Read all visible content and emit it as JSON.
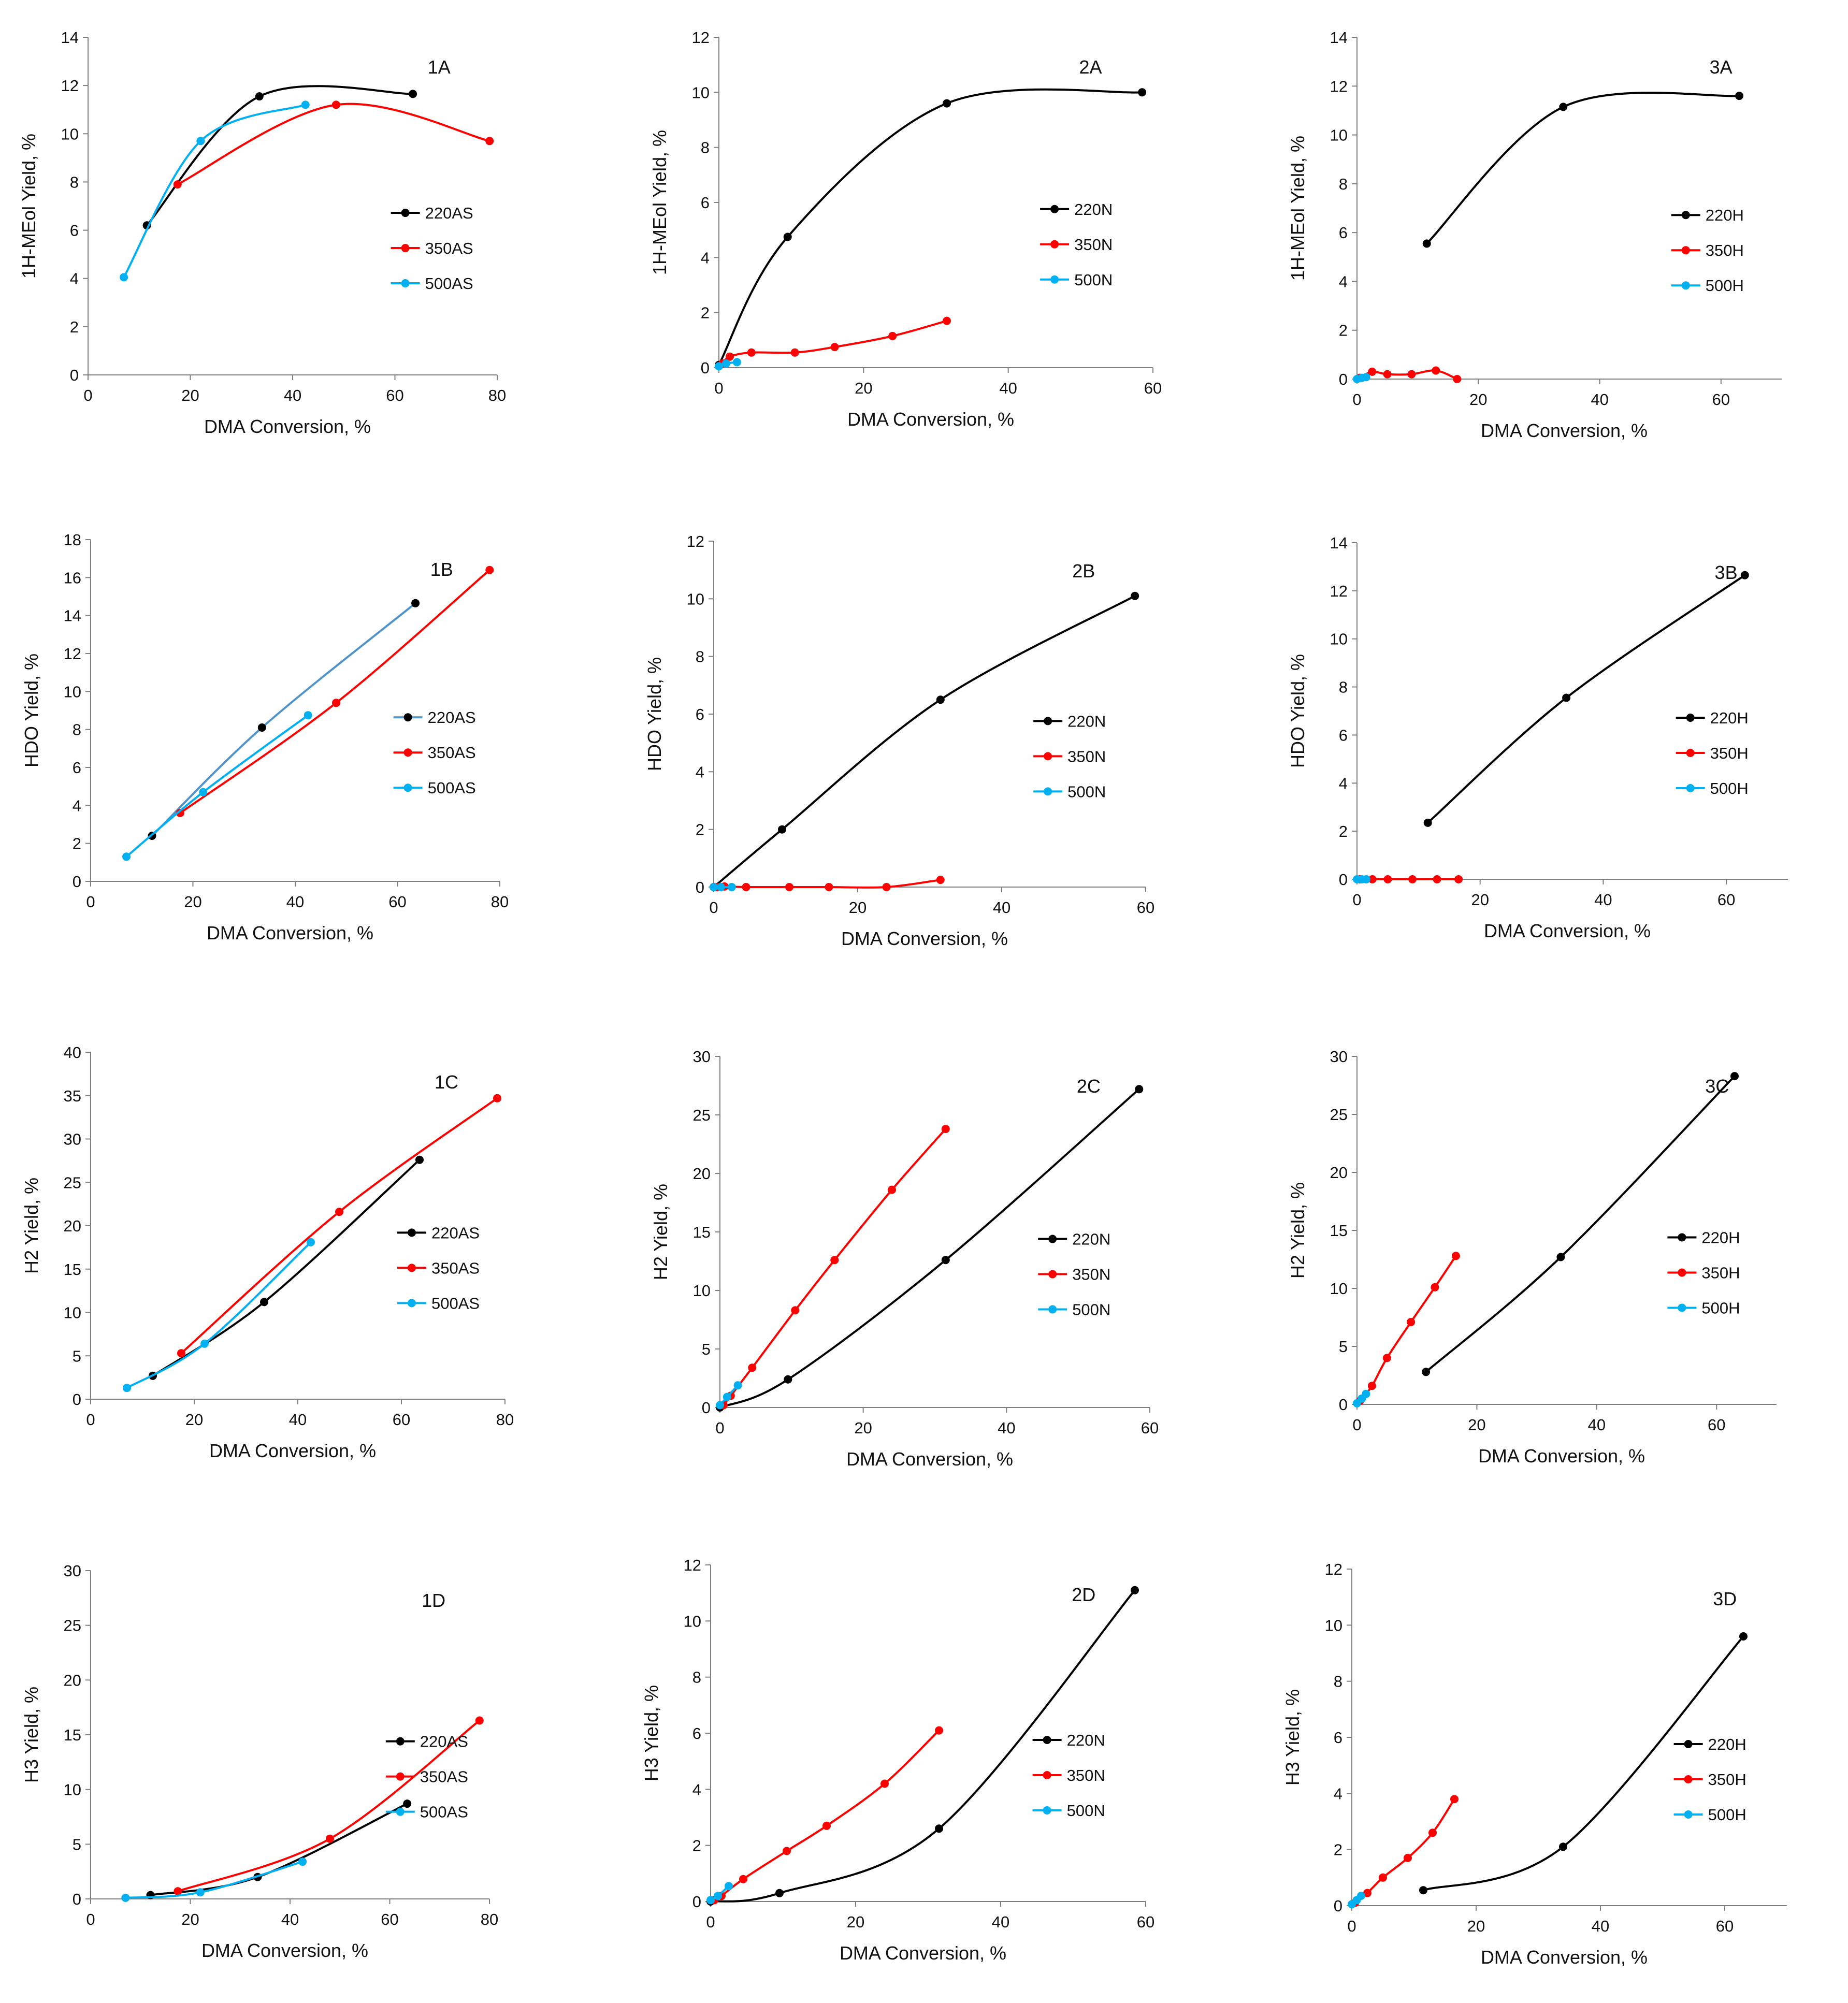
{
  "colors": {
    "black": "#000000",
    "red": "#ff0000",
    "blue": "#00b0f0",
    "steel": "#4f93c9"
  },
  "chart_data": [
    {
      "type": "line",
      "panel": "1A",
      "xlabel": "DMA Conversion, %",
      "ylabel": "1H-MEol Yield, %",
      "xlim": [
        0,
        80
      ],
      "ylim": [
        0,
        14
      ],
      "xticks": [
        0,
        20,
        40,
        60,
        80
      ],
      "yticks": [
        0,
        2,
        4,
        6,
        8,
        10,
        12,
        14
      ],
      "legend_position": "right",
      "series": [
        {
          "name": "220AS",
          "color": "#000000",
          "x": [
            11.5,
            33.5,
            63.5
          ],
          "y": [
            6.2,
            11.55,
            11.65
          ]
        },
        {
          "name": "350AS",
          "color": "#ff0000",
          "x": [
            17.5,
            48.5,
            78.5
          ],
          "y": [
            7.9,
            11.2,
            9.7
          ]
        },
        {
          "name": "500AS",
          "color": "#00b0f0",
          "x": [
            7,
            22,
            42.5
          ],
          "y": [
            4.05,
            9.7,
            11.2
          ]
        }
      ]
    },
    {
      "type": "line",
      "panel": "2A",
      "xlabel": "DMA Conversion, %",
      "ylabel": "1H-MEol Yield, %",
      "xlim": [
        0,
        60
      ],
      "ylim": [
        0,
        12
      ],
      "xticks": [
        0,
        20,
        40,
        60
      ],
      "yticks": [
        0,
        2,
        4,
        6,
        8,
        10,
        12
      ],
      "legend_position": "right",
      "series": [
        {
          "name": "220N",
          "color": "#000000",
          "x": [
            0,
            9.5,
            31.5,
            58.5
          ],
          "y": [
            0.1,
            4.75,
            9.6,
            10.0
          ]
        },
        {
          "name": "350N",
          "color": "#ff0000",
          "x": [
            0.5,
            1.5,
            4.5,
            10.5,
            16,
            24,
            31.5
          ],
          "y": [
            0.15,
            0.4,
            0.55,
            0.55,
            0.75,
            1.15,
            1.7
          ]
        },
        {
          "name": "500N",
          "color": "#00b0f0",
          "x": [
            0,
            1,
            2.5
          ],
          "y": [
            0.05,
            0.15,
            0.2
          ]
        }
      ]
    },
    {
      "type": "line",
      "panel": "3A",
      "xlabel": "DMA Conversion, %",
      "ylabel": "1H-MEol Yield, %",
      "xlim": [
        0,
        70
      ],
      "ylim": [
        0,
        14
      ],
      "xticks": [
        0,
        20,
        40,
        60
      ],
      "yticks": [
        0,
        2,
        4,
        6,
        8,
        10,
        12,
        14
      ],
      "legend_position": "right",
      "series": [
        {
          "name": "220H",
          "color": "#000000",
          "x": [
            11.5,
            34,
            63
          ],
          "y": [
            5.55,
            11.15,
            11.6
          ]
        },
        {
          "name": "350H",
          "color": "#ff0000",
          "x": [
            0.5,
            2.5,
            5,
            9,
            13,
            16.5
          ],
          "y": [
            0.05,
            0.3,
            0.2,
            0.2,
            0.35,
            0.0
          ]
        },
        {
          "name": "500H",
          "color": "#00b0f0",
          "x": [
            0,
            0.8,
            1.5
          ],
          "y": [
            0.0,
            0.05,
            0.08
          ]
        }
      ]
    },
    {
      "type": "line",
      "panel": "1B",
      "xlabel": "DMA Conversion, %",
      "ylabel": "HDO Yield, %",
      "xlim": [
        0,
        80
      ],
      "ylim": [
        0,
        18
      ],
      "xticks": [
        0,
        20,
        40,
        60,
        80
      ],
      "yticks": [
        0,
        2,
        4,
        6,
        8,
        10,
        12,
        14,
        16,
        18
      ],
      "legend_position": "right",
      "series": [
        {
          "name": "220AS",
          "color": "#4f93c9",
          "marker_color": "#000000",
          "x": [
            12,
            33.5,
            63.5
          ],
          "y": [
            2.4,
            8.1,
            14.65
          ]
        },
        {
          "name": "350AS",
          "color": "#ff0000",
          "x": [
            17.5,
            48,
            78
          ],
          "y": [
            3.6,
            9.4,
            16.4
          ]
        },
        {
          "name": "500AS",
          "color": "#00b0f0",
          "x": [
            7,
            22,
            42.5
          ],
          "y": [
            1.3,
            4.7,
            8.75
          ]
        }
      ]
    },
    {
      "type": "line",
      "panel": "2B",
      "xlabel": "DMA Conversion, %",
      "ylabel": "HDO Yield, %",
      "xlim": [
        0,
        60
      ],
      "ylim": [
        0,
        12
      ],
      "xticks": [
        0,
        20,
        40,
        60
      ],
      "yticks": [
        0,
        2,
        4,
        6,
        8,
        10,
        12
      ],
      "legend_position": "right",
      "series": [
        {
          "name": "220N",
          "color": "#000000",
          "x": [
            0,
            9.5,
            31.5,
            58.5
          ],
          "y": [
            0.0,
            2.0,
            6.5,
            10.1
          ]
        },
        {
          "name": "350N",
          "color": "#ff0000",
          "x": [
            0.5,
            1.5,
            4.5,
            10.5,
            16,
            24,
            31.5
          ],
          "y": [
            0.0,
            0.02,
            0.0,
            0.0,
            0.0,
            0.0,
            0.25
          ]
        },
        {
          "name": "500N",
          "color": "#00b0f0",
          "x": [
            0,
            1,
            2.5
          ],
          "y": [
            0.0,
            0.0,
            0.0
          ]
        }
      ]
    },
    {
      "type": "line",
      "panel": "3B",
      "xlabel": "DMA Conversion, %",
      "ylabel": "HDO Yield, %",
      "xlim": [
        0,
        70
      ],
      "ylim": [
        0,
        14
      ],
      "xticks": [
        0,
        20,
        40,
        60
      ],
      "yticks": [
        0,
        2,
        4,
        6,
        8,
        10,
        12,
        14
      ],
      "legend_position": "right",
      "series": [
        {
          "name": "220H",
          "color": "#000000",
          "x": [
            11.5,
            34,
            63
          ],
          "y": [
            2.35,
            7.55,
            12.65
          ]
        },
        {
          "name": "350H",
          "color": "#ff0000",
          "x": [
            0.5,
            2.5,
            5,
            9,
            13,
            16.5
          ],
          "y": [
            0.0,
            0.0,
            0.0,
            0.0,
            0.0,
            0.0
          ]
        },
        {
          "name": "500H",
          "color": "#00b0f0",
          "x": [
            0,
            0.8,
            1.5
          ],
          "y": [
            0.0,
            0.0,
            0.0
          ]
        }
      ]
    },
    {
      "type": "line",
      "panel": "1C",
      "xlabel": "DMA Conversion, %",
      "ylabel": "H2 Yield, %",
      "xlim": [
        0,
        80
      ],
      "ylim": [
        0,
        40
      ],
      "xticks": [
        0,
        20,
        40,
        60,
        80
      ],
      "yticks": [
        0,
        5,
        10,
        15,
        20,
        25,
        30,
        35,
        40
      ],
      "legend_position": "right",
      "series": [
        {
          "name": "220AS",
          "color": "#000000",
          "x": [
            12,
            33.5,
            63.5
          ],
          "y": [
            2.7,
            11.2,
            27.6
          ]
        },
        {
          "name": "350AS",
          "color": "#ff0000",
          "x": [
            17.5,
            48,
            78.5
          ],
          "y": [
            5.3,
            21.6,
            34.7
          ]
        },
        {
          "name": "500AS",
          "color": "#00b0f0",
          "x": [
            7,
            22,
            42.5
          ],
          "y": [
            1.3,
            6.4,
            18.1
          ]
        }
      ]
    },
    {
      "type": "line",
      "panel": "2C",
      "xlabel": "DMA Conversion, %",
      "ylabel": "H2 Yield, %",
      "xlim": [
        0,
        60
      ],
      "ylim": [
        0,
        30
      ],
      "xticks": [
        0,
        20,
        40,
        60
      ],
      "yticks": [
        0,
        5,
        10,
        15,
        20,
        25,
        30
      ],
      "legend_position": "right",
      "series": [
        {
          "name": "220N",
          "color": "#000000",
          "x": [
            0,
            9.5,
            31.5,
            58.5
          ],
          "y": [
            0.0,
            2.4,
            12.6,
            27.2
          ]
        },
        {
          "name": "350N",
          "color": "#ff0000",
          "x": [
            0.5,
            1.5,
            4.5,
            10.5,
            16,
            24,
            31.5
          ],
          "y": [
            0.2,
            1.0,
            3.4,
            8.3,
            12.6,
            18.6,
            23.8
          ]
        },
        {
          "name": "500N",
          "color": "#00b0f0",
          "x": [
            0,
            1,
            2.5
          ],
          "y": [
            0.2,
            0.9,
            1.9
          ]
        }
      ]
    },
    {
      "type": "line",
      "panel": "3C",
      "xlabel": "DMA Conversion, %",
      "ylabel": "H2 Yield, %",
      "xlim": [
        0,
        70
      ],
      "ylim": [
        0,
        30
      ],
      "xticks": [
        0,
        20,
        40,
        60
      ],
      "yticks": [
        0,
        5,
        10,
        15,
        20,
        25,
        30
      ],
      "legend_position": "right",
      "series": [
        {
          "name": "220H",
          "color": "#000000",
          "x": [
            11.5,
            34,
            63
          ],
          "y": [
            2.8,
            12.7,
            28.3
          ]
        },
        {
          "name": "350H",
          "color": "#ff0000",
          "x": [
            0.5,
            2.5,
            5,
            9,
            13,
            16.5
          ],
          "y": [
            0.3,
            1.6,
            4.0,
            7.1,
            10.1,
            12.8
          ]
        },
        {
          "name": "500H",
          "color": "#00b0f0",
          "x": [
            0,
            0.8,
            1.5
          ],
          "y": [
            0.1,
            0.5,
            0.9
          ]
        }
      ]
    },
    {
      "type": "line",
      "panel": "1D",
      "xlabel": "DMA Conversion, %",
      "ylabel": "H3 Yield, %",
      "xlim": [
        0,
        80
      ],
      "ylim": [
        0,
        30
      ],
      "xticks": [
        0,
        20,
        40,
        60,
        80
      ],
      "yticks": [
        0,
        5,
        10,
        15,
        20,
        25,
        30
      ],
      "legend_position": "right",
      "series": [
        {
          "name": "220AS",
          "color": "#000000",
          "x": [
            12,
            33.5,
            63.5
          ],
          "y": [
            0.35,
            2.0,
            8.7
          ]
        },
        {
          "name": "350AS",
          "color": "#ff0000",
          "x": [
            17.5,
            48,
            78
          ],
          "y": [
            0.7,
            5.5,
            16.3
          ]
        },
        {
          "name": "500AS",
          "color": "#00b0f0",
          "x": [
            7,
            22,
            42.5
          ],
          "y": [
            0.1,
            0.6,
            3.4
          ]
        }
      ]
    },
    {
      "type": "line",
      "panel": "2D",
      "xlabel": "DMA Conversion, %",
      "ylabel": "H3 Yield, %",
      "xlim": [
        0,
        60
      ],
      "ylim": [
        0,
        12
      ],
      "xticks": [
        0,
        20,
        40,
        60
      ],
      "yticks": [
        0,
        2,
        4,
        6,
        8,
        10,
        12
      ],
      "legend_position": "right",
      "series": [
        {
          "name": "220N",
          "color": "#000000",
          "x": [
            0,
            9.5,
            31.5,
            58.5
          ],
          "y": [
            0.0,
            0.3,
            2.6,
            11.1
          ]
        },
        {
          "name": "350N",
          "color": "#ff0000",
          "x": [
            0.5,
            1.5,
            4.5,
            10.5,
            16,
            24,
            31.5
          ],
          "y": [
            0.05,
            0.2,
            0.8,
            1.8,
            2.7,
            4.2,
            6.1
          ]
        },
        {
          "name": "500N",
          "color": "#00b0f0",
          "x": [
            0,
            1,
            2.5
          ],
          "y": [
            0.05,
            0.2,
            0.55
          ]
        }
      ]
    },
    {
      "type": "line",
      "panel": "3D",
      "xlabel": "DMA Conversion, %",
      "ylabel": "H3 Yield, %",
      "xlim": [
        0,
        70
      ],
      "ylim": [
        0,
        12
      ],
      "xticks": [
        0,
        20,
        40,
        60
      ],
      "yticks": [
        0,
        2,
        4,
        6,
        8,
        10,
        12
      ],
      "legend_position": "right",
      "series": [
        {
          "name": "220H",
          "color": "#000000",
          "x": [
            11.5,
            34,
            63
          ],
          "y": [
            0.55,
            2.1,
            9.6
          ]
        },
        {
          "name": "350H",
          "color": "#ff0000",
          "x": [
            0.5,
            2.5,
            5,
            9,
            13,
            16.5
          ],
          "y": [
            0.1,
            0.45,
            1.0,
            1.7,
            2.6,
            3.8
          ]
        },
        {
          "name": "500H",
          "color": "#00b0f0",
          "x": [
            0,
            0.8,
            1.5
          ],
          "y": [
            0.05,
            0.2,
            0.35
          ]
        }
      ]
    }
  ]
}
